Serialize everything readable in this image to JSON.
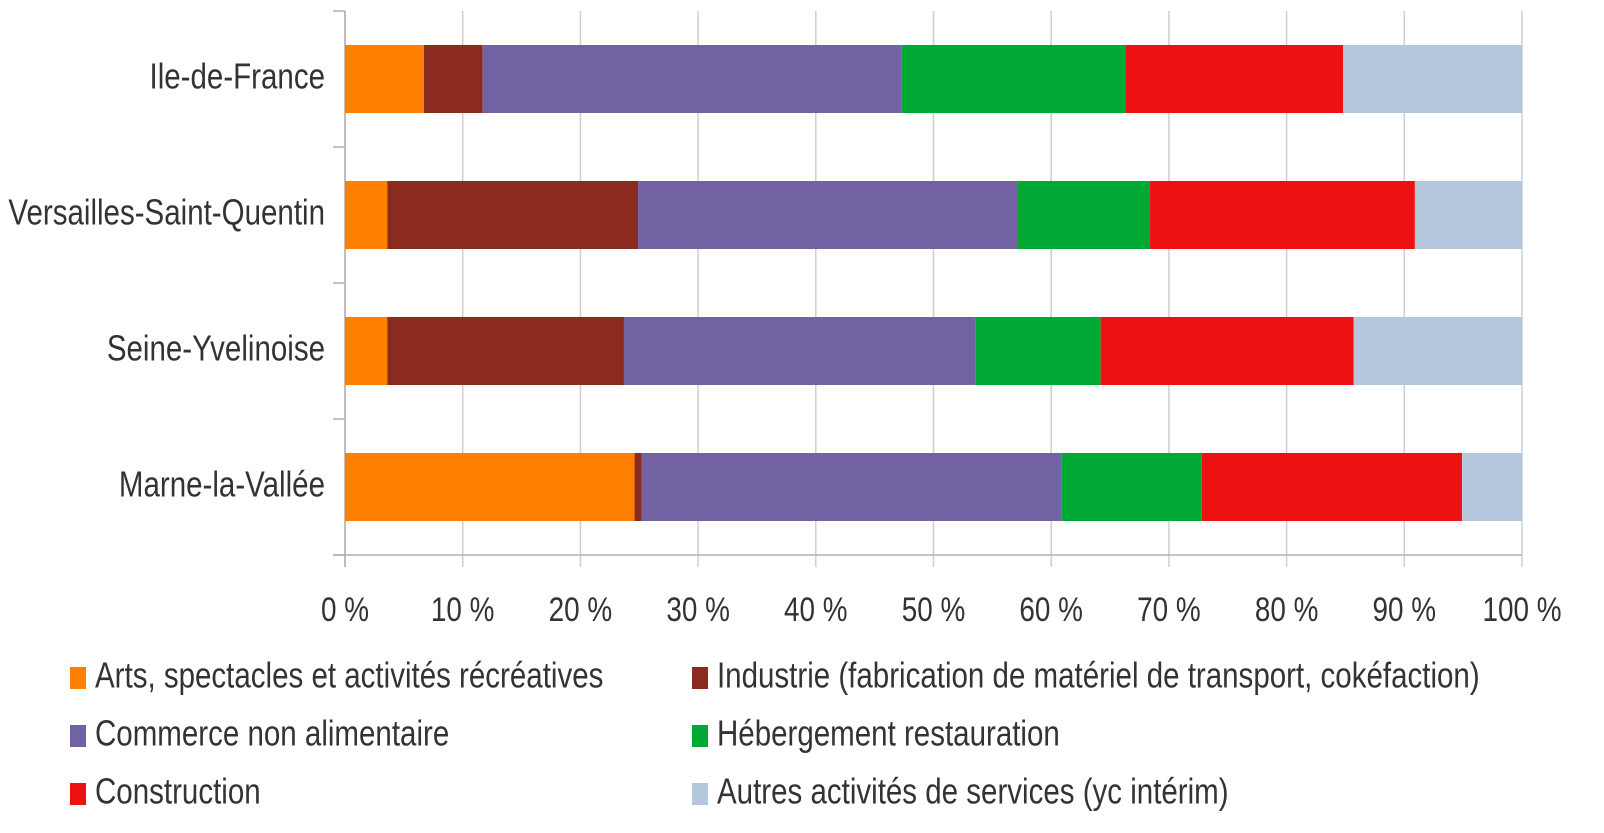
{
  "chart_data": {
    "type": "stacked_barh",
    "categories": [
      "Ile-de-France",
      "Versailles-Saint-Quentin",
      "Seine-Yvelinoise",
      "Marne-la-Vallée"
    ],
    "series": [
      {
        "name": "Arts, spectacles et activités récréatives",
        "color": "#ff8000",
        "values": [
          6.7,
          3.6,
          3.6,
          24.6
        ]
      },
      {
        "name": "Industrie (fabrication de matériel de transport, cokéfaction)",
        "color": "#8b2a1f",
        "values": [
          5.0,
          21.3,
          20.1,
          0.6
        ]
      },
      {
        "name": "Commerce non alimentaire",
        "color": "#7262a4",
        "values": [
          35.6,
          32.2,
          29.9,
          35.7
        ]
      },
      {
        "name": "Hébergement restauration",
        "color": "#00a933",
        "values": [
          19.0,
          11.3,
          10.6,
          11.9
        ]
      },
      {
        "name": "Construction",
        "color": "#ee1111",
        "values": [
          18.5,
          22.5,
          21.5,
          22.1
        ]
      },
      {
        "name": "Autres activités de services (yc intérim)",
        "color": "#b4c7dc",
        "values": [
          15.2,
          9.1,
          14.3,
          5.1
        ]
      }
    ],
    "xlim": [
      0,
      100
    ],
    "xticks": [
      {
        "value": 0,
        "label": "0 %"
      },
      {
        "value": 10,
        "label": "10 %"
      },
      {
        "value": 20,
        "label": "20 %"
      },
      {
        "value": 30,
        "label": "30 %"
      },
      {
        "value": 40,
        "label": "40 %"
      },
      {
        "value": 50,
        "label": "50 %"
      },
      {
        "value": 60,
        "label": "60 %"
      },
      {
        "value": 70,
        "label": "70 %"
      },
      {
        "value": 80,
        "label": "80 %"
      },
      {
        "value": 90,
        "label": "90 %"
      },
      {
        "value": 100,
        "label": "100 %"
      }
    ],
    "grid": true
  }
}
